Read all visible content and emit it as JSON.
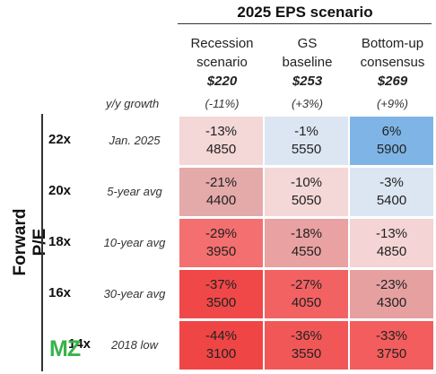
{
  "chart_data": {
    "type": "heatmap",
    "title": "2025 EPS scenario",
    "ylabel": "Forward P/E",
    "growth_label": "y/y growth",
    "columns": [
      {
        "label_line1": "Recession",
        "label_line2": "scenario",
        "eps": "$220",
        "growth": "(-11%)"
      },
      {
        "label_line1": "GS",
        "label_line2": "baseline",
        "eps": "$253",
        "growth": "(+3%)"
      },
      {
        "label_line1": "Bottom-up",
        "label_line2": "consensus",
        "eps": "$269",
        "growth": "(+9%)"
      }
    ],
    "rows": [
      {
        "pe": "22x",
        "desc": "Jan. 2025",
        "cells": [
          {
            "pct": "-13%",
            "value": "4850"
          },
          {
            "pct": "-1%",
            "value": "5550"
          },
          {
            "pct": "6%",
            "value": "5900"
          }
        ]
      },
      {
        "pe": "20x",
        "desc": "5-year avg",
        "cells": [
          {
            "pct": "-21%",
            "value": "4400"
          },
          {
            "pct": "-10%",
            "value": "5050"
          },
          {
            "pct": "-3%",
            "value": "5400"
          }
        ]
      },
      {
        "pe": "18x",
        "desc": "10-year avg",
        "cells": [
          {
            "pct": "-29%",
            "value": "3950"
          },
          {
            "pct": "-18%",
            "value": "4550"
          },
          {
            "pct": "-13%",
            "value": "4850"
          }
        ]
      },
      {
        "pe": "16x",
        "desc": "30-year avg",
        "cells": [
          {
            "pct": "-37%",
            "value": "3500"
          },
          {
            "pct": "-27%",
            "value": "4050"
          },
          {
            "pct": "-23%",
            "value": "4300"
          }
        ]
      },
      {
        "pe": "14x",
        "desc": "2018 low",
        "cells": [
          {
            "pct": "-44%",
            "value": "3100"
          },
          {
            "pct": "-36%",
            "value": "3550"
          },
          {
            "pct": "-33%",
            "value": "3750"
          }
        ]
      }
    ],
    "colors": {
      "positive": "#7fb5e6",
      "slight_negative": "#dce6f2",
      "neg_light": "#f4d7d7",
      "neg_mid": "#f0a8a8",
      "neg_strong": "#f25b5b",
      "neg_mauve": "#e2a7a7"
    }
  },
  "logo": {
    "text": "MZ"
  }
}
